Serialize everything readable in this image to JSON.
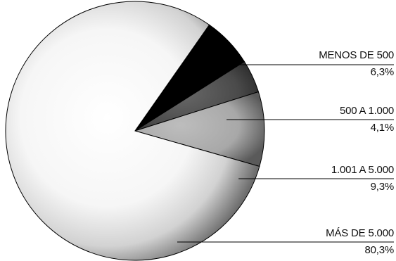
{
  "chart_data": {
    "type": "pie",
    "title": "",
    "legend": "labels-right",
    "slices": [
      {
        "label": "MENOS DE 500",
        "value": 6.3,
        "display": "6,3%",
        "color": "#000000"
      },
      {
        "label": "500 A 1.000",
        "value": 4.1,
        "display": "4,1%",
        "color": "#4a4a4a"
      },
      {
        "label": "1.001 A 5.000",
        "value": 9.3,
        "display": "9,3%",
        "color": "#a6a6a6"
      },
      {
        "label": "MÁS DE 5.000",
        "value": 80.3,
        "display": "80,3%",
        "color": "#ffffff"
      }
    ]
  }
}
